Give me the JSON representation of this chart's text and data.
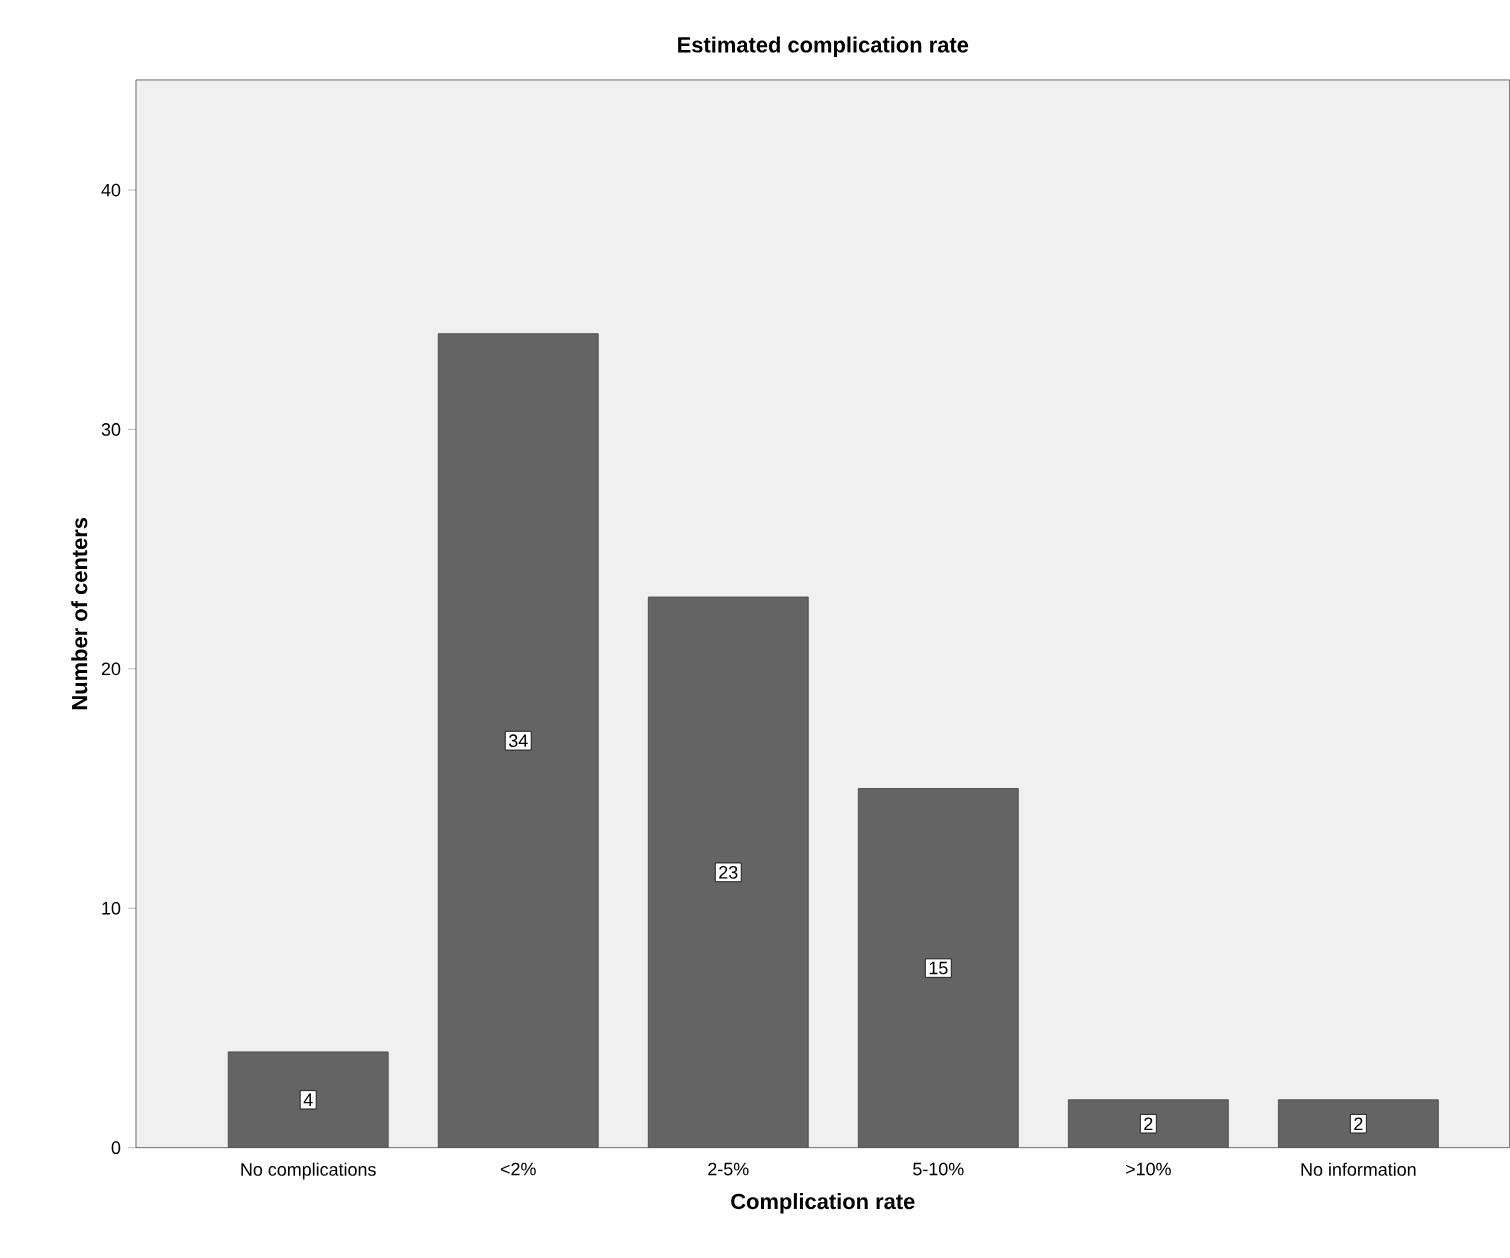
{
  "chart_data": {
    "type": "bar",
    "title": "Estimated complication rate",
    "xlabel": "Complication rate",
    "ylabel": "Number of centers",
    "categories": [
      "No complications",
      "<2%",
      "2-5%",
      "5-10%",
      ">10%",
      "No information"
    ],
    "values": [
      4,
      34,
      23,
      15,
      2,
      2
    ],
    "color": "#646464",
    "ylim": [
      0,
      44.6
    ],
    "yticks": [
      0,
      10,
      20,
      30,
      40
    ],
    "grid": false,
    "data_labels": true
  }
}
